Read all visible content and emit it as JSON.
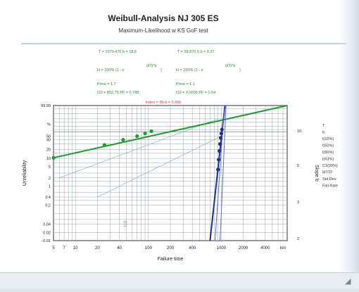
{
  "chart_data": {
    "type": "scatter",
    "title": "Weibull-Analysis NJ 305 ES",
    "subtitle": "Maximum-Likelihood w KS GoF test",
    "xlabel": "Failure time",
    "ylabel": "Unreliability",
    "y2label": "Slope b",
    "x_scale": "log",
    "y_scale": "weibull",
    "x_ticks": [
      "5",
      "7",
      "10",
      "20",
      "40",
      "100",
      "200",
      "400",
      "1000",
      "2000",
      "4000",
      "km"
    ],
    "y_ticks": [
      "99.99",
      "%",
      "50",
      "40",
      "20",
      "10",
      "5",
      "2",
      "1",
      "0.4",
      "0.2",
      "0.04",
      "0.02",
      "0.01"
    ],
    "y2_ticks": [
      "10",
      "5",
      "3",
      "2"
    ],
    "grid": true,
    "series": [
      {
        "color": "#1f9a2e",
        "points": [
          [
            5,
            10.5
          ],
          [
            25,
            28
          ],
          [
            45,
            40
          ],
          [
            70,
            50
          ],
          [
            90,
            58
          ],
          [
            110,
            65
          ]
        ]
      },
      {
        "color": "#1f2f9a",
        "points": [
          [
            900,
            4
          ],
          [
            920,
            9
          ],
          [
            940,
            18
          ],
          [
            960,
            30
          ],
          [
            980,
            45
          ],
          [
            1000,
            58
          ],
          [
            1020,
            70
          ]
        ]
      }
    ],
    "annotations": {
      "formula_left": {
        "header": "T = 1070.476    b = 18.5",
        "fn": "H = 100% (1 - e",
        "r2": "Prms = 1.7",
        "tb": "t10 = 852.75   PF = 0.788"
      },
      "formula_right": {
        "header": "T = 58.870.5    b = 0.37",
        "fn": "H = 100% (1 - e",
        "r2": "Prms = 1.1",
        "tb": "t10 = 0.0006   PF = 0.54"
      },
      "red_note": "Index = 99.6 = 0.996",
      "vertical_note": "t10"
    },
    "side_legend": [
      "T",
      "b",
      "t(10%)",
      "t(50%)",
      "t(90%)",
      "t(63%)",
      "C1(99%)",
      "MTTF",
      "Std.Dev",
      "Fail.Rate"
    ]
  }
}
